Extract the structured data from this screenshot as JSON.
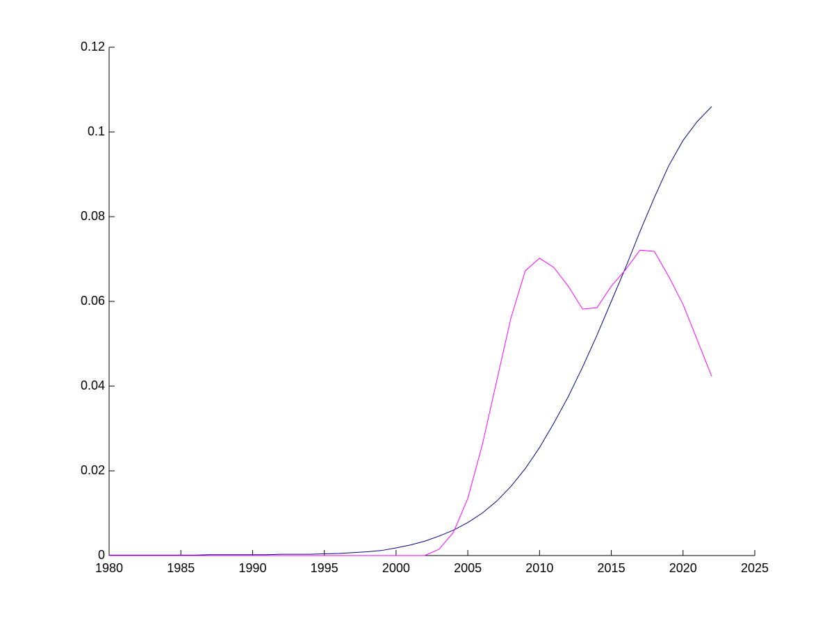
{
  "chart_data": {
    "type": "line",
    "x": [
      1980,
      1981,
      1982,
      1983,
      1984,
      1985,
      1986,
      1987,
      1988,
      1989,
      1990,
      1991,
      1992,
      1993,
      1994,
      1995,
      1996,
      1997,
      1998,
      1999,
      2000,
      2001,
      2002,
      2003,
      2004,
      2005,
      2006,
      2007,
      2008,
      2009,
      2010,
      2011,
      2012,
      2013,
      2014,
      2015,
      2016,
      2017,
      2018,
      2019,
      2020,
      2021,
      2022
    ],
    "series": [
      {
        "color": "#00007f",
        "values": [
          0.0001,
          0.0001,
          0.0001,
          0.0001,
          0.0001,
          0.0001,
          0.0001,
          0.0002,
          0.0002,
          0.0002,
          0.0002,
          0.0002,
          0.0003,
          0.0003,
          0.0003,
          0.0004,
          0.0005,
          0.0007,
          0.0009,
          0.0012,
          0.0018,
          0.0025,
          0.0034,
          0.0046,
          0.006,
          0.0078,
          0.01,
          0.0128,
          0.0163,
          0.0205,
          0.0255,
          0.0313,
          0.0375,
          0.0445,
          0.052,
          0.06,
          0.068,
          0.0765,
          0.0845,
          0.092,
          0.098,
          0.1025,
          0.106
        ]
      },
      {
        "color": "#ff00ff",
        "values": [
          0,
          0,
          0,
          0,
          0,
          0,
          0,
          0,
          0,
          0,
          0,
          0,
          0,
          0,
          0,
          0,
          0,
          0,
          0,
          0,
          0,
          0,
          0,
          0.0015,
          0.0055,
          0.0135,
          0.026,
          0.041,
          0.056,
          0.0672,
          0.0702,
          0.068,
          0.0636,
          0.0582,
          0.0585,
          0.0636,
          0.0675,
          0.0721,
          0.0718,
          0.0659,
          0.0593,
          0.0508,
          0.0423
        ]
      }
    ],
    "xlim": [
      1980,
      2025
    ],
    "xticks": [
      1980,
      1985,
      1990,
      1995,
      2000,
      2005,
      2010,
      2015,
      2020,
      2025
    ],
    "ylim": [
      0,
      0.12
    ],
    "yticks": [
      0,
      0.02,
      0.04,
      0.06,
      0.08,
      0.1,
      0.12
    ]
  }
}
